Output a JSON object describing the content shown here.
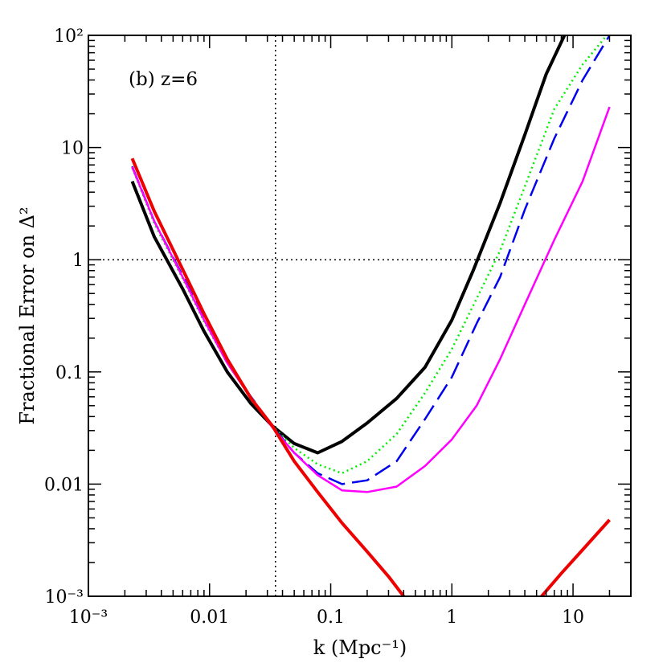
{
  "chart_data": {
    "type": "line",
    "panel_label": "(b) z=6",
    "xlabel": "k (Mpc⁻¹)",
    "ylabel": "Fractional Error on Δ²",
    "xscale": "log",
    "yscale": "log",
    "xlim": [
      0.001,
      30
    ],
    "ylim": [
      0.001,
      100
    ],
    "x_ticks": [
      {
        "value": 0.001,
        "label": "10⁻³"
      },
      {
        "value": 0.01,
        "label": "0.01"
      },
      {
        "value": 0.1,
        "label": "0.1"
      },
      {
        "value": 1,
        "label": "1"
      },
      {
        "value": 10,
        "label": "10"
      }
    ],
    "y_ticks": [
      {
        "value": 0.001,
        "label": "10⁻³"
      },
      {
        "value": 0.01,
        "label": "0.01"
      },
      {
        "value": 0.1,
        "label": "0.1"
      },
      {
        "value": 1,
        "label": "1"
      },
      {
        "value": 10,
        "label": "10"
      },
      {
        "value": 100,
        "label": "10²"
      }
    ],
    "reference_lines": [
      {
        "orientation": "vertical",
        "value": 0.035,
        "style": "dotted"
      },
      {
        "orientation": "horizontal",
        "value": 1,
        "style": "dotted"
      }
    ],
    "series": [
      {
        "color": "#000000",
        "style": "solid",
        "width": 4,
        "points": [
          [
            0.0023,
            5.0
          ],
          [
            0.0035,
            1.6
          ],
          [
            0.006,
            0.55
          ],
          [
            0.009,
            0.23
          ],
          [
            0.014,
            0.1
          ],
          [
            0.022,
            0.052
          ],
          [
            0.033,
            0.033
          ],
          [
            0.05,
            0.023
          ],
          [
            0.078,
            0.019
          ],
          [
            0.124,
            0.024
          ],
          [
            0.2,
            0.035
          ],
          [
            0.35,
            0.058
          ],
          [
            0.6,
            0.11
          ],
          [
            1.0,
            0.29
          ],
          [
            1.5,
            0.8
          ],
          [
            2.5,
            3.2
          ],
          [
            4.0,
            13
          ],
          [
            6.0,
            45
          ],
          [
            8.5,
            100
          ]
        ]
      },
      {
        "color": "#00ee00",
        "style": "dotted",
        "width": 2.5,
        "points": [
          [
            0.0023,
            6.6
          ],
          [
            0.0035,
            2.1
          ],
          [
            0.006,
            0.68
          ],
          [
            0.009,
            0.28
          ],
          [
            0.014,
            0.12
          ],
          [
            0.022,
            0.058
          ],
          [
            0.033,
            0.033
          ],
          [
            0.05,
            0.021
          ],
          [
            0.078,
            0.015
          ],
          [
            0.124,
            0.0125
          ],
          [
            0.2,
            0.016
          ],
          [
            0.35,
            0.028
          ],
          [
            0.6,
            0.065
          ],
          [
            1.0,
            0.16
          ],
          [
            1.6,
            0.45
          ],
          [
            2.5,
            1.2
          ],
          [
            4.0,
            4.5
          ],
          [
            7.0,
            22
          ],
          [
            12.0,
            55
          ],
          [
            19.0,
            100
          ]
        ]
      },
      {
        "color": "#0000ee",
        "style": "dashed",
        "width": 2.5,
        "points": [
          [
            0.0023,
            6.8
          ],
          [
            0.0035,
            2.2
          ],
          [
            0.006,
            0.72
          ],
          [
            0.009,
            0.3
          ],
          [
            0.014,
            0.12
          ],
          [
            0.022,
            0.06
          ],
          [
            0.033,
            0.033
          ],
          [
            0.05,
            0.019
          ],
          [
            0.078,
            0.0125
          ],
          [
            0.124,
            0.01
          ],
          [
            0.2,
            0.0108
          ],
          [
            0.35,
            0.016
          ],
          [
            0.6,
            0.038
          ],
          [
            1.0,
            0.09
          ],
          [
            1.6,
            0.27
          ],
          [
            2.5,
            0.7
          ],
          [
            4.0,
            2.8
          ],
          [
            7.0,
            12
          ],
          [
            12.0,
            40
          ],
          [
            20.0,
            100
          ]
        ]
      },
      {
        "color": "#ff00ff",
        "style": "solid",
        "width": 2.5,
        "points": [
          [
            0.0023,
            6.7
          ],
          [
            0.0035,
            2.2
          ],
          [
            0.006,
            0.7
          ],
          [
            0.009,
            0.29
          ],
          [
            0.014,
            0.12
          ],
          [
            0.022,
            0.058
          ],
          [
            0.033,
            0.032
          ],
          [
            0.05,
            0.019
          ],
          [
            0.078,
            0.012
          ],
          [
            0.124,
            0.0088
          ],
          [
            0.2,
            0.0085
          ],
          [
            0.35,
            0.0095
          ],
          [
            0.6,
            0.0145
          ],
          [
            1.0,
            0.025
          ],
          [
            1.6,
            0.05
          ],
          [
            2.5,
            0.13
          ],
          [
            4.0,
            0.4
          ],
          [
            7.0,
            1.5
          ],
          [
            12.0,
            5.0
          ],
          [
            20.0,
            23
          ]
        ]
      },
      {
        "color": "#ee0000",
        "style": "solid",
        "width": 4,
        "points": [
          [
            0.0023,
            8.0
          ],
          [
            0.0035,
            2.7
          ],
          [
            0.006,
            0.82
          ],
          [
            0.009,
            0.33
          ],
          [
            0.014,
            0.13
          ],
          [
            0.022,
            0.058
          ],
          [
            0.033,
            0.033
          ],
          [
            0.05,
            0.016
          ],
          [
            0.078,
            0.0085
          ],
          [
            0.124,
            0.0045
          ],
          [
            0.2,
            0.0025
          ],
          [
            0.3,
            0.0015
          ],
          [
            0.4,
            0.001
          ]
        ]
      },
      {
        "color": "#ee0000",
        "style": "solid",
        "width": 4,
        "points": [
          [
            5.5,
            0.001
          ],
          [
            8.0,
            0.0016
          ],
          [
            12.0,
            0.0026
          ],
          [
            20.0,
            0.0048
          ]
        ]
      }
    ]
  }
}
